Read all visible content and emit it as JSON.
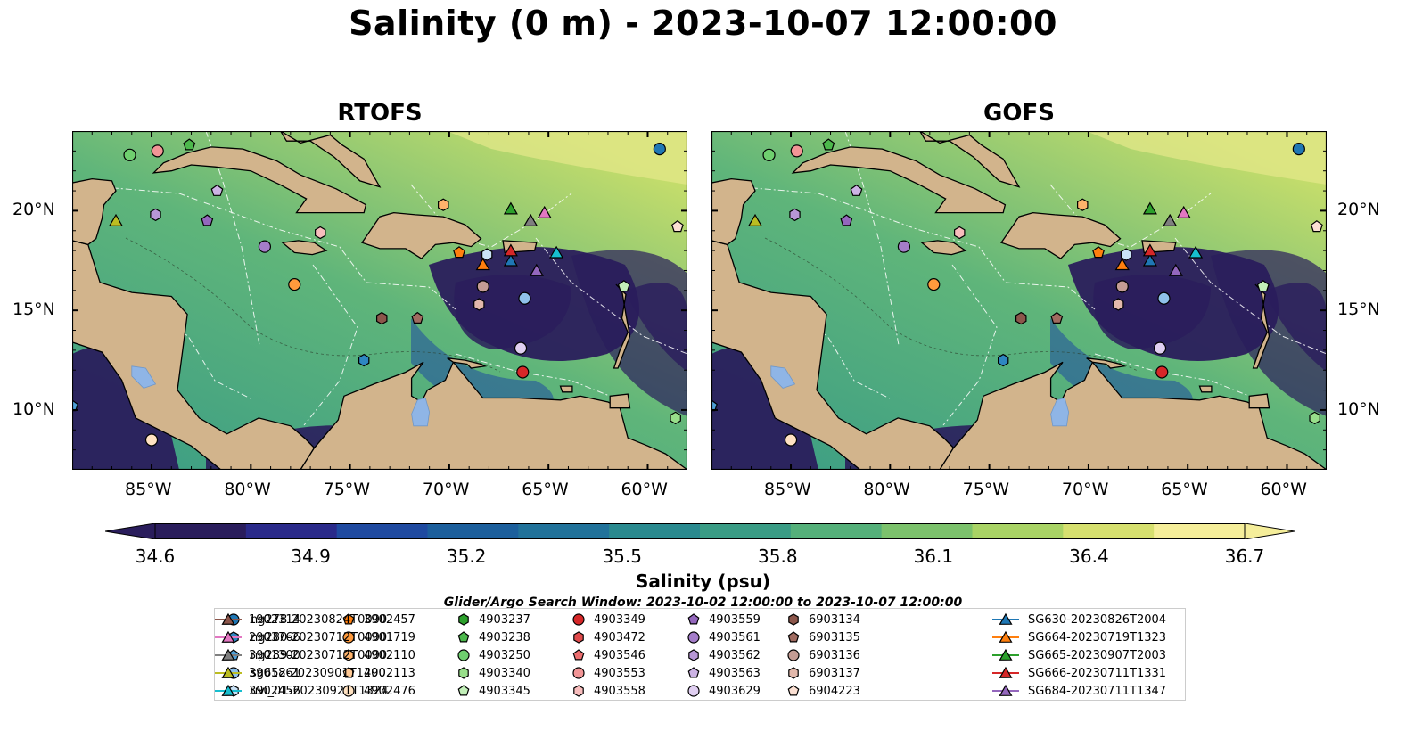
{
  "title": "Salinity (0 m) - 2023-10-07 12:00:00",
  "panels": [
    {
      "title": "RTOFS"
    },
    {
      "title": "GOFS"
    }
  ],
  "axes": {
    "x_ticks": [
      "85°W",
      "80°W",
      "75°W",
      "70°W",
      "65°W",
      "60°W"
    ],
    "y_ticks": [
      "20°N",
      "15°N",
      "10°N"
    ],
    "lon_range": [
      -89,
      -58
    ],
    "lat_range": [
      7,
      24
    ]
  },
  "colorbar": {
    "label": "Salinity (psu)",
    "min": 34.6,
    "max": 36.7,
    "ticks": [
      "34.6",
      "34.9",
      "35.2",
      "35.5",
      "35.8",
      "36.1",
      "36.4",
      "36.7"
    ],
    "colors": [
      "#2a1d5c",
      "#2a2a8a",
      "#1f4aa0",
      "#1c5f9c",
      "#21729a",
      "#2a8a8f",
      "#3a9c85",
      "#55b07a",
      "#7cc26c",
      "#a9d365",
      "#d6e06f",
      "#f5ee9a"
    ]
  },
  "search_window": "Glider/Argo Search Window: 2023-10-02 12:00:00 to 2023-10-07 12:00:00",
  "colors": {
    "land": "#d2b48c",
    "lakes": "#8fb5e6",
    "deep_fresh": "#2a1d5c",
    "mid": "#3a9c85",
    "salty": "#c5dd6b"
  },
  "legend": [
    {
      "label": "1902314",
      "marker": "circle",
      "color": "#1f77b4"
    },
    {
      "label": "2903766",
      "marker": "hexagon",
      "color": "#2e86c1"
    },
    {
      "label": "3901300",
      "marker": "pentagon",
      "color": "#4e9fd6"
    },
    {
      "label": "3901861",
      "marker": "circle",
      "color": "#8fc1ea"
    },
    {
      "label": "3902456",
      "marker": "hexagon",
      "color": "#c9e2f6"
    },
    {
      "label": "3902457",
      "marker": "pentagon",
      "color": "#ff7f0e"
    },
    {
      "label": "4901719",
      "marker": "circle",
      "color": "#ff9a3c"
    },
    {
      "label": "4902110",
      "marker": "hexagon",
      "color": "#ffb36b"
    },
    {
      "label": "4902113",
      "marker": "pentagon",
      "color": "#ffc995"
    },
    {
      "label": "4902476",
      "marker": "circle",
      "color": "#ffe2c2"
    },
    {
      "label": "4903237",
      "marker": "hexagon",
      "color": "#2ca02c"
    },
    {
      "label": "4903238",
      "marker": "pentagon",
      "color": "#4cb84c"
    },
    {
      "label": "4903250",
      "marker": "circle",
      "color": "#6fcf6f"
    },
    {
      "label": "4903340",
      "marker": "hexagon",
      "color": "#98df8a"
    },
    {
      "label": "4903345",
      "marker": "pentagon",
      "color": "#c2efb8"
    },
    {
      "label": "4903349",
      "marker": "circle",
      "color": "#d62728"
    },
    {
      "label": "4903472",
      "marker": "hexagon",
      "color": "#e04a4b"
    },
    {
      "label": "4903546",
      "marker": "pentagon",
      "color": "#ec6e6f"
    },
    {
      "label": "4903553",
      "marker": "circle",
      "color": "#f29596"
    },
    {
      "label": "4903558",
      "marker": "hexagon",
      "color": "#f8bdbd"
    },
    {
      "label": "4903559",
      "marker": "pentagon",
      "color": "#9467bd"
    },
    {
      "label": "4903561",
      "marker": "circle",
      "color": "#a47dc9"
    },
    {
      "label": "4903562",
      "marker": "hexagon",
      "color": "#b797d6"
    },
    {
      "label": "4903563",
      "marker": "pentagon",
      "color": "#ccb3e4"
    },
    {
      "label": "4903629",
      "marker": "circle",
      "color": "#e0cff1"
    },
    {
      "label": "6903134",
      "marker": "hexagon",
      "color": "#8c564b"
    },
    {
      "label": "6903135",
      "marker": "pentagon",
      "color": "#a06b60"
    },
    {
      "label": "6903136",
      "marker": "circle",
      "color": "#c49c94"
    },
    {
      "label": "6903137",
      "marker": "hexagon",
      "color": "#e2b8ab"
    },
    {
      "label": "6904223",
      "marker": "pentagon",
      "color": "#fbe0d3"
    },
    {
      "label": "SG630-20230826T2004",
      "marker": "triangle",
      "color": "#1f77b4"
    },
    {
      "label": "SG664-20230719T1323",
      "marker": "triangle",
      "color": "#ff7f0e"
    },
    {
      "label": "SG665-20230907T2003",
      "marker": "triangle",
      "color": "#2ca02c"
    },
    {
      "label": "SG666-20230711T1331",
      "marker": "triangle",
      "color": "#d62728"
    },
    {
      "label": "SG684-20230711T1347",
      "marker": "triangle",
      "color": "#9467bd"
    },
    {
      "label": "ng278-20230824T0000",
      "marker": "triangle",
      "color": "#8c564b"
    },
    {
      "label": "ng280-20230712T0000",
      "marker": "triangle",
      "color": "#e377c2"
    },
    {
      "label": "ng289-20230712T0000",
      "marker": "triangle",
      "color": "#7f7f7f"
    },
    {
      "label": "sg652-20230901T1200",
      "marker": "triangle",
      "color": "#bcbd22"
    },
    {
      "label": "uvi_01-20230921T1324",
      "marker": "triangle",
      "color": "#17becf"
    }
  ],
  "observations": [
    {
      "id": "1902314",
      "lon": -59.4,
      "lat": 23.1
    },
    {
      "id": "2903766",
      "lon": -74.3,
      "lat": 12.5
    },
    {
      "id": "3901300",
      "lon": -89.0,
      "lat": 10.2
    },
    {
      "id": "3901861",
      "lon": -66.2,
      "lat": 15.6
    },
    {
      "id": "3902456",
      "lon": -68.1,
      "lat": 17.8
    },
    {
      "id": "3902457",
      "lon": -69.5,
      "lat": 17.9
    },
    {
      "id": "4901719",
      "lon": -77.8,
      "lat": 16.3
    },
    {
      "id": "4902110",
      "lon": -70.3,
      "lat": 20.3
    },
    {
      "id": "4902476",
      "lon": -85.0,
      "lat": 8.5
    },
    {
      "id": "4903238",
      "lon": -83.1,
      "lat": 23.3
    },
    {
      "id": "4903250",
      "lon": -86.1,
      "lat": 22.8
    },
    {
      "id": "4903340",
      "lon": -58.6,
      "lat": 9.6
    },
    {
      "id": "4903345",
      "lon": -61.2,
      "lat": 16.2
    },
    {
      "id": "4903349",
      "lon": -66.3,
      "lat": 11.9
    },
    {
      "id": "4903553",
      "lon": -84.7,
      "lat": 23.0
    },
    {
      "id": "4903558",
      "lon": -76.5,
      "lat": 18.9
    },
    {
      "id": "4903559",
      "lon": -82.2,
      "lat": 19.5
    },
    {
      "id": "4903561",
      "lon": -79.3,
      "lat": 18.2
    },
    {
      "id": "4903562",
      "lon": -84.8,
      "lat": 19.8
    },
    {
      "id": "4903563",
      "lon": -81.7,
      "lat": 21.0
    },
    {
      "id": "4903629",
      "lon": -66.4,
      "lat": 13.1
    },
    {
      "id": "6903134",
      "lon": -73.4,
      "lat": 14.6
    },
    {
      "id": "6903135",
      "lon": -71.6,
      "lat": 14.6
    },
    {
      "id": "6903136",
      "lon": -68.3,
      "lat": 16.2
    },
    {
      "id": "6903137",
      "lon": -68.5,
      "lat": 15.3
    },
    {
      "id": "6904223",
      "lon": -58.5,
      "lat": 19.2
    },
    {
      "id": "SG630-20230826T2004",
      "lon": -66.9,
      "lat": 17.5
    },
    {
      "id": "SG664-20230719T1323",
      "lon": -68.3,
      "lat": 17.3
    },
    {
      "id": "SG665-20230907T2003",
      "lon": -66.9,
      "lat": 20.1
    },
    {
      "id": "SG666-20230711T1331",
      "lon": -66.9,
      "lat": 18.0
    },
    {
      "id": "SG684-20230711T1347",
      "lon": -65.6,
      "lat": 17.0
    },
    {
      "id": "ng280-20230712T0000",
      "lon": -65.2,
      "lat": 19.9
    },
    {
      "id": "ng289-20230712T0000",
      "lon": -65.9,
      "lat": 19.5
    },
    {
      "id": "sg652-20230901T1200",
      "lon": -86.8,
      "lat": 19.5
    },
    {
      "id": "uvi_01-20230921T1324",
      "lon": -64.6,
      "lat": 17.9
    }
  ]
}
